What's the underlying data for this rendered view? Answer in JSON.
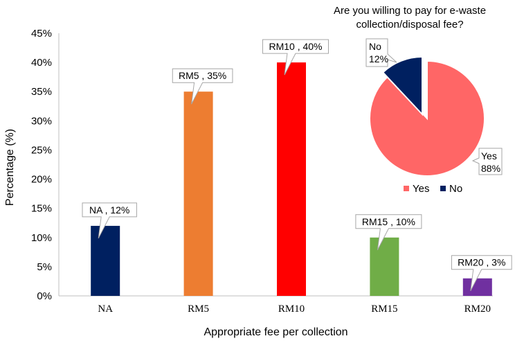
{
  "chart_data": [
    {
      "type": "bar",
      "xlabel": "Appropriate fee per collection",
      "ylabel": "Percentage (%)",
      "ylim": [
        0,
        45
      ],
      "yticks": [
        "0%",
        "5%",
        "10%",
        "15%",
        "20%",
        "25%",
        "30%",
        "35%",
        "40%",
        "45%"
      ],
      "ytick_values": [
        0,
        5,
        10,
        15,
        20,
        25,
        30,
        35,
        40,
        45
      ],
      "grid": false,
      "categories": [
        "NA",
        "RM5",
        "RM10",
        "RM15",
        "RM20"
      ],
      "values": [
        12,
        35,
        40,
        10,
        3
      ],
      "colors": [
        "#002060",
        "#ed7d31",
        "#ff0000",
        "#70ad47",
        "#7030a0"
      ],
      "data_labels": [
        "NA , 12%",
        "RM5 , 35%",
        "RM10 , 40%",
        "RM15 , 10%",
        "RM20 , 3%"
      ]
    },
    {
      "type": "pie",
      "title": "Are you willing to pay for e-waste collection/disposal fee?",
      "title_lines": [
        "Are you willing to pay for e-waste",
        "collection/disposal fee?"
      ],
      "slices": [
        {
          "name": "Yes",
          "value": 88,
          "label_lines": [
            "Yes",
            "88%"
          ],
          "color": "#ff6666"
        },
        {
          "name": "No",
          "value": 12,
          "label_lines": [
            "No",
            "12%"
          ],
          "color": "#002060"
        }
      ],
      "legend": "bottom",
      "legend_entries": [
        "Yes",
        "No"
      ]
    }
  ]
}
